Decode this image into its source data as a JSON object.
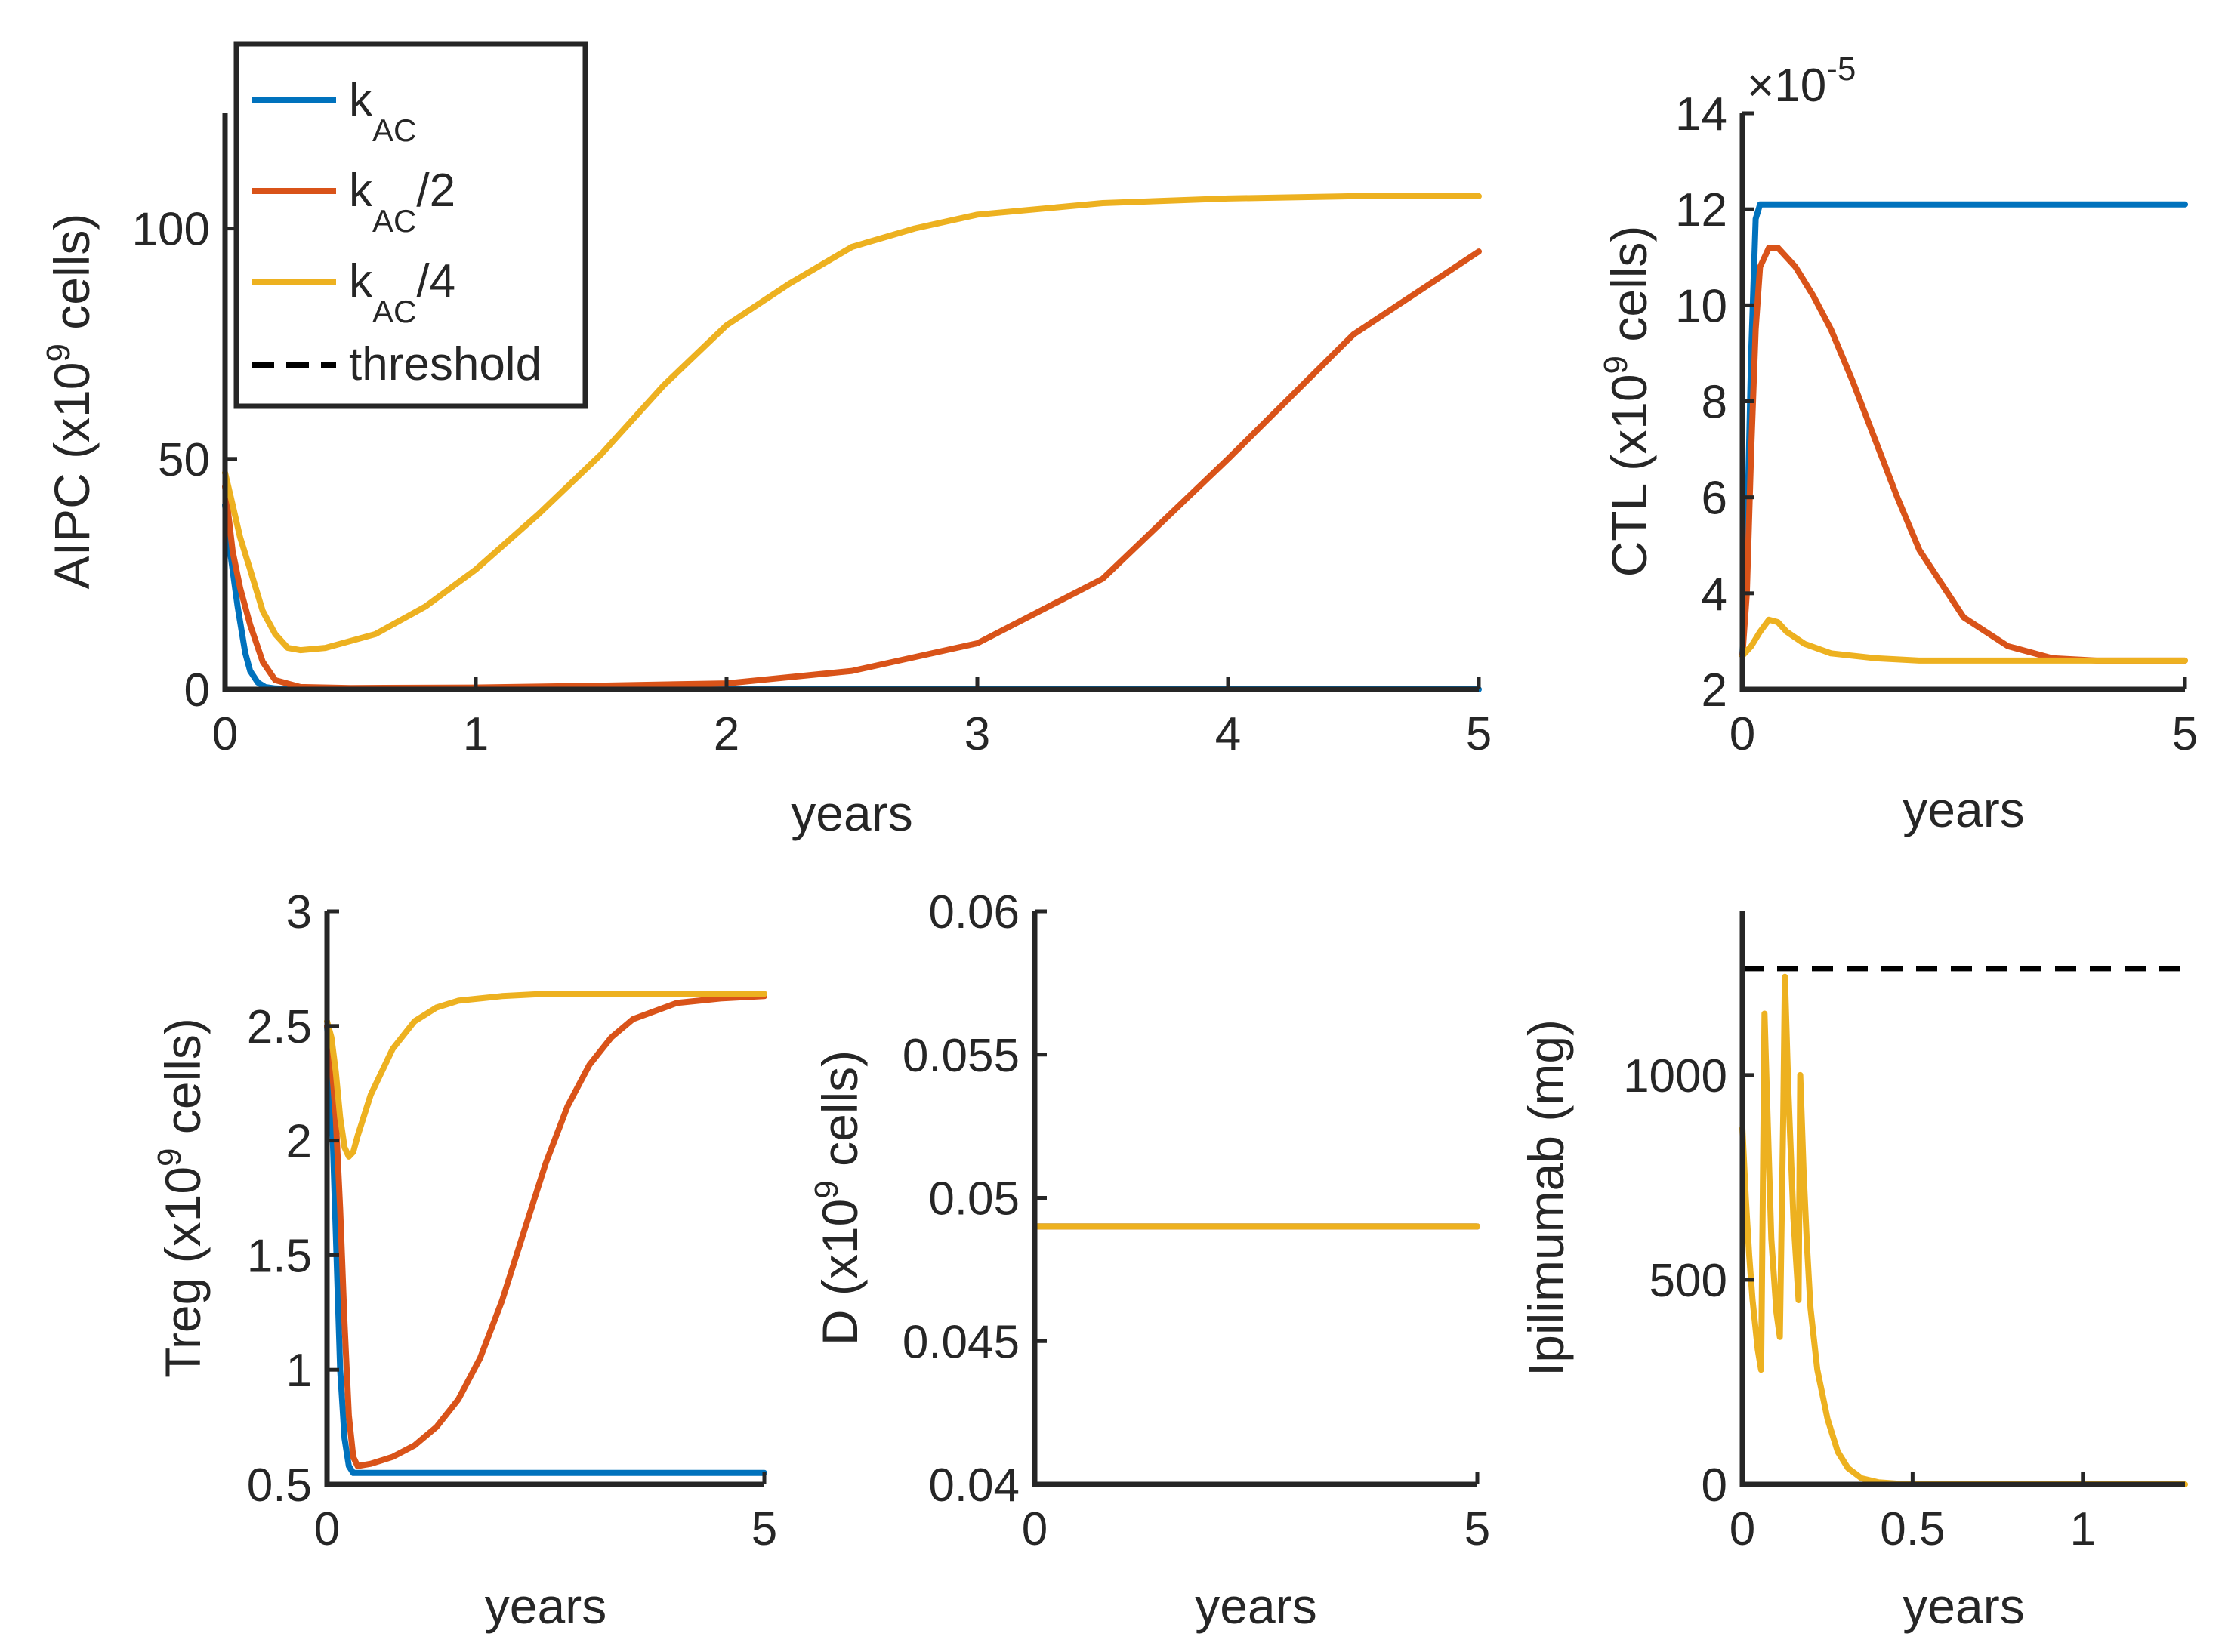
{
  "colors": {
    "kac": "#0072BD",
    "kac2": "#D95319",
    "kac4": "#EDB120",
    "threshold": "#000000",
    "axis": "#262626"
  },
  "legend": {
    "items": [
      {
        "key": "kac",
        "base": "k",
        "sub": "AC",
        "suffix": ""
      },
      {
        "key": "kac2",
        "base": "k",
        "sub": "AC",
        "suffix": "/2"
      },
      {
        "key": "kac4",
        "base": "k",
        "sub": "AC",
        "suffix": "/4"
      },
      {
        "key": "threshold",
        "base": "threshold",
        "sub": "",
        "suffix": ""
      }
    ]
  },
  "chart_data": [
    {
      "id": "aipc",
      "type": "line",
      "xlabel": "years",
      "ylabel": {
        "pre": "AIPC (x10",
        "sup": "9",
        "post": " cells)"
      },
      "xlim": [
        0,
        5
      ],
      "ylim": [
        0,
        125
      ],
      "xticks": [
        {
          "v": 0,
          "label": "0"
        },
        {
          "v": 1,
          "label": "1"
        },
        {
          "v": 2,
          "label": "2"
        },
        {
          "v": 3,
          "label": "3"
        },
        {
          "v": 4,
          "label": "4"
        },
        {
          "v": 5,
          "label": "5"
        }
      ],
      "yticks": [
        {
          "v": 0,
          "label": "0"
        },
        {
          "v": 50,
          "label": "50"
        },
        {
          "v": 100,
          "label": "100"
        }
      ],
      "series": [
        {
          "name": "k_AC",
          "key": "kac",
          "x": [
            0,
            0.02,
            0.05,
            0.08,
            0.1,
            0.13,
            0.16,
            0.2,
            0.3,
            1,
            5
          ],
          "y": [
            40,
            30,
            18,
            8,
            4,
            1.5,
            0.5,
            0.2,
            0,
            0,
            0
          ]
        },
        {
          "name": "k_AC/2",
          "key": "kac2",
          "x": [
            0,
            0.03,
            0.06,
            0.1,
            0.15,
            0.2,
            0.3,
            0.5,
            1,
            1.5,
            2,
            2.5,
            3,
            3.5,
            4,
            4.5,
            5
          ],
          "y": [
            44,
            30,
            22,
            14,
            6,
            2,
            0.5,
            0.3,
            0.4,
            0.8,
            1.3,
            4,
            10,
            24,
            50,
            77,
            95
          ]
        },
        {
          "name": "k_AC/4",
          "key": "kac4",
          "x": [
            0,
            0.03,
            0.06,
            0.1,
            0.15,
            0.2,
            0.25,
            0.3,
            0.4,
            0.6,
            0.8,
            1,
            1.25,
            1.5,
            1.75,
            2,
            2.25,
            2.5,
            2.75,
            3,
            3.5,
            4,
            4.5,
            5
          ],
          "y": [
            47,
            40,
            33,
            26,
            17,
            12,
            9,
            8.5,
            9,
            12,
            18,
            26,
            38,
            51,
            66,
            79,
            88,
            96,
            100,
            103,
            105.5,
            106.5,
            107,
            107
          ]
        }
      ]
    },
    {
      "id": "ctl",
      "type": "line",
      "xlabel": "years",
      "ylabel": {
        "pre": "CTL (x10",
        "sup": "9",
        "post": " cells)"
      },
      "multiplier": {
        "pre": "×10",
        "sup": "-5"
      },
      "xlim": [
        0,
        5
      ],
      "ylim": [
        2,
        14
      ],
      "xticks": [
        {
          "v": 0,
          "label": "0"
        },
        {
          "v": 5,
          "label": "5"
        }
      ],
      "yticks": [
        {
          "v": 2,
          "label": "2"
        },
        {
          "v": 4,
          "label": "4"
        },
        {
          "v": 6,
          "label": "6"
        },
        {
          "v": 8,
          "label": "8"
        },
        {
          "v": 10,
          "label": "10"
        },
        {
          "v": 12,
          "label": "12"
        },
        {
          "v": 14,
          "label": "14"
        }
      ],
      "series": [
        {
          "name": "k_AC",
          "key": "kac",
          "x": [
            0,
            0.05,
            0.1,
            0.15,
            0.2,
            1,
            5
          ],
          "y": [
            2.7,
            5,
            9,
            11.8,
            12.1,
            12.1,
            12.1
          ]
        },
        {
          "name": "k_AC/2",
          "key": "kac2",
          "x": [
            0,
            0.05,
            0.1,
            0.15,
            0.2,
            0.3,
            0.4,
            0.6,
            0.8,
            1,
            1.25,
            1.5,
            1.75,
            2,
            2.5,
            3,
            3.5,
            4,
            5
          ],
          "y": [
            2.7,
            4,
            7,
            9.5,
            10.8,
            11.2,
            11.2,
            10.8,
            10.2,
            9.5,
            8.4,
            7.2,
            6,
            4.9,
            3.5,
            2.9,
            2.65,
            2.6,
            2.6
          ]
        },
        {
          "name": "k_AC/4",
          "key": "kac4",
          "x": [
            0,
            0.1,
            0.2,
            0.3,
            0.4,
            0.5,
            0.7,
            1,
            1.5,
            2,
            3,
            5
          ],
          "y": [
            2.7,
            2.9,
            3.2,
            3.45,
            3.4,
            3.2,
            2.95,
            2.75,
            2.65,
            2.6,
            2.6,
            2.6
          ]
        }
      ]
    },
    {
      "id": "treg",
      "type": "line",
      "xlabel": "years",
      "ylabel": {
        "pre": "Treg (x10",
        "sup": "9",
        "post": " cells)"
      },
      "xlim": [
        0,
        5
      ],
      "ylim": [
        0.5,
        3
      ],
      "xticks": [
        {
          "v": 0,
          "label": "0"
        },
        {
          "v": 5,
          "label": "5"
        }
      ],
      "yticks": [
        {
          "v": 0.5,
          "label": "0.5"
        },
        {
          "v": 1,
          "label": "1"
        },
        {
          "v": 1.5,
          "label": "1.5"
        },
        {
          "v": 2,
          "label": "2"
        },
        {
          "v": 2.5,
          "label": "2.5"
        },
        {
          "v": 3,
          "label": "3"
        }
      ],
      "series": [
        {
          "name": "k_AC",
          "key": "kac",
          "x": [
            0,
            0.05,
            0.1,
            0.15,
            0.2,
            0.25,
            0.3,
            1,
            5
          ],
          "y": [
            2.5,
            2.2,
            1.6,
            1,
            0.7,
            0.58,
            0.55,
            0.55,
            0.55
          ]
        },
        {
          "name": "k_AC/2",
          "key": "kac2",
          "x": [
            0,
            0.05,
            0.1,
            0.15,
            0.2,
            0.25,
            0.3,
            0.35,
            0.5,
            0.75,
            1,
            1.25,
            1.5,
            1.75,
            2,
            2.25,
            2.5,
            2.75,
            3,
            3.25,
            3.5,
            4,
            4.5,
            5
          ],
          "y": [
            2.5,
            2.35,
            2.1,
            1.7,
            1.2,
            0.8,
            0.62,
            0.58,
            0.59,
            0.62,
            0.67,
            0.75,
            0.87,
            1.05,
            1.3,
            1.6,
            1.9,
            2.15,
            2.33,
            2.45,
            2.53,
            2.6,
            2.62,
            2.63
          ]
        },
        {
          "name": "k_AC/4",
          "key": "kac4",
          "x": [
            0,
            0.05,
            0.1,
            0.15,
            0.2,
            0.25,
            0.3,
            0.35,
            0.5,
            0.75,
            1,
            1.25,
            1.5,
            2,
            2.5,
            3,
            4,
            5
          ],
          "y": [
            2.52,
            2.45,
            2.3,
            2.1,
            1.97,
            1.93,
            1.95,
            2.02,
            2.2,
            2.4,
            2.52,
            2.58,
            2.61,
            2.63,
            2.64,
            2.64,
            2.64,
            2.64
          ]
        }
      ]
    },
    {
      "id": "d",
      "type": "line",
      "xlabel": "years",
      "ylabel": {
        "pre": "D (x10",
        "sup": "9",
        "post": " cells)"
      },
      "xlim": [
        0,
        5
      ],
      "ylim": [
        0.04,
        0.06
      ],
      "xticks": [
        {
          "v": 0,
          "label": "0"
        },
        {
          "v": 5,
          "label": "5"
        }
      ],
      "yticks": [
        {
          "v": 0.04,
          "label": "0.04"
        },
        {
          "v": 0.045,
          "label": "0.045"
        },
        {
          "v": 0.05,
          "label": "0.05"
        },
        {
          "v": 0.055,
          "label": "0.055"
        },
        {
          "v": 0.06,
          "label": "0.06"
        }
      ],
      "series": [
        {
          "name": "k_AC",
          "key": "kac",
          "x": [
            0,
            5
          ],
          "y": [
            0.049,
            0.049
          ]
        },
        {
          "name": "k_AC/2",
          "key": "kac2",
          "x": [
            0,
            5
          ],
          "y": [
            0.049,
            0.049
          ]
        },
        {
          "name": "k_AC/4",
          "key": "kac4",
          "x": [
            0,
            5
          ],
          "y": [
            0.049,
            0.049
          ]
        }
      ]
    },
    {
      "id": "ipi",
      "type": "line",
      "xlabel": "years",
      "ylabel": {
        "pre": "Ipilimumab (mg)",
        "sup": "",
        "post": ""
      },
      "xlim": [
        0,
        1.3
      ],
      "ylim": [
        0,
        1400
      ],
      "xticks": [
        {
          "v": 0,
          "label": "0"
        },
        {
          "v": 0.5,
          "label": "0.5"
        },
        {
          "v": 1,
          "label": "1"
        }
      ],
      "yticks": [
        {
          "v": 0,
          "label": "0"
        },
        {
          "v": 500,
          "label": "500"
        },
        {
          "v": 1000,
          "label": "1000"
        }
      ],
      "threshold": 1260,
      "series": [
        {
          "name": "k_AC/4",
          "key": "kac4",
          "x": [
            0,
            0.01,
            0.02,
            0.03,
            0.045,
            0.055,
            0.06,
            0.065,
            0.075,
            0.085,
            0.1,
            0.11,
            0.12,
            0.125,
            0.135,
            0.15,
            0.165,
            0.17,
            0.18,
            0.19,
            0.2,
            0.22,
            0.25,
            0.28,
            0.31,
            0.35,
            0.4,
            0.45,
            0.5,
            0.6,
            0.8,
            1,
            1.3
          ],
          "y": [
            870,
            700,
            560,
            450,
            330,
            280,
            700,
            1150,
            870,
            600,
            420,
            360,
            900,
            1240,
            960,
            650,
            450,
            1000,
            760,
            580,
            430,
            280,
            160,
            80,
            40,
            15,
            5,
            2,
            0,
            0,
            0,
            0,
            0
          ]
        }
      ]
    }
  ]
}
